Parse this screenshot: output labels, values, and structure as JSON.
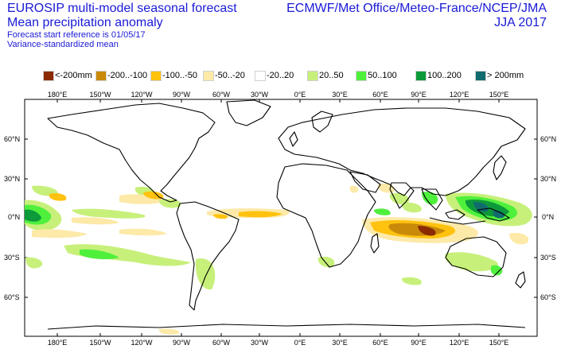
{
  "header": {
    "title_line1": "EUROSIP multi-model seasonal forecast",
    "title_line2": "Mean precipitation anomaly",
    "subtitle_line1": "Forecast start reference is 01/05/17",
    "subtitle_line2": "Variance-standardized mean",
    "centres": "ECMWF/Met Office/Meteo-France/NCEP/JMA",
    "season": "JJA 2017"
  },
  "legend": [
    {
      "label": "<-200mm",
      "color": "#8b2a00"
    },
    {
      "label": "-200..-100",
      "color": "#c98a0a"
    },
    {
      "label": "-100..-50",
      "color": "#ffc20e"
    },
    {
      "label": "-50..-20",
      "color": "#fde9a8"
    },
    {
      "label": "-20..20",
      "color": "#ffffff"
    },
    {
      "label": "20..50",
      "color": "#c7f07a"
    },
    {
      "label": "50..100",
      "color": "#4ff03c"
    },
    {
      "label": "100..200",
      "color": "#0d9a3a"
    },
    {
      "label": "> 200mm",
      "color": "#116a6e"
    }
  ],
  "map": {
    "lon_labels": [
      "180°E",
      "150°W",
      "120°W",
      "90°W",
      "60°W",
      "30°W",
      "0°E",
      "30°E",
      "60°E",
      "90°E",
      "120°E",
      "150°E"
    ],
    "lat_labels": [
      "60°N",
      "30°N",
      "0°N",
      "30°S",
      "60°S"
    ]
  }
}
